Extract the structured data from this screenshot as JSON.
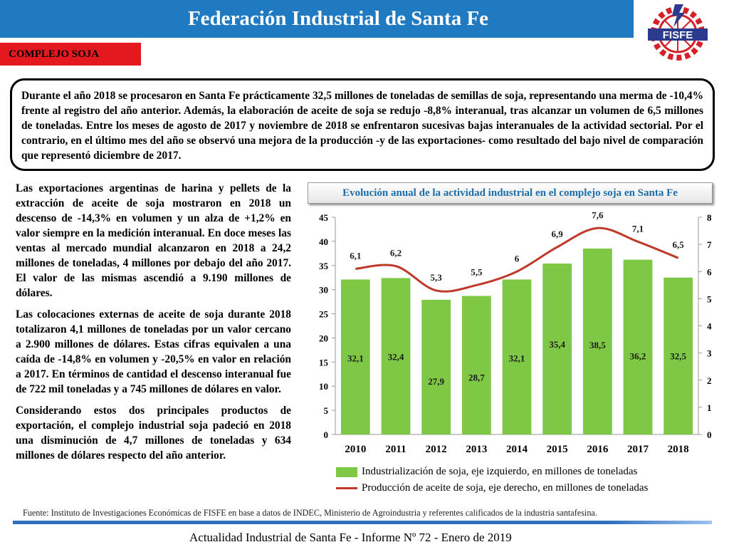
{
  "header": {
    "title": "Federación Industrial de Santa Fe"
  },
  "logo": {
    "text": "FISFE",
    "icon": "fisfe-gear-logo-icon"
  },
  "section": {
    "label": "COMPLEJO SOJA"
  },
  "summary": "Durante el año 2018 se procesaron en Santa Fe prácticamente 32,5 millones de toneladas de semillas de soja, representando una merma de -10,4% frente al registro del año anterior. Además, la elaboración de aceite de soja se redujo -8,8% interanual, tras alcanzar un volumen de 6,5 millones de toneladas. Entre los meses de agosto de 2017 y noviembre de 2018 se enfrentaron sucesivas bajas interanuales de la actividad sectorial. Por el contrario, en el último mes del año se observó una mejora de la producción -y de las exportaciones- como resultado del bajo nivel de comparación que representó diciembre de 2017.",
  "paragraphs": [
    "Las exportaciones argentinas de harina y pellets de la extracción de aceite de soja mostraron en 2018 un descenso de -14,3% en volumen y un alza de +1,2% en valor siempre en la medición interanual. En doce meses las ventas al mercado mundial alcanzaron en 2018 a 24,2 millones de toneladas, 4 millones por debajo del año 2017. El valor de las mismas ascendió a 9.190 millones de dólares.",
    "Las colocaciones externas de aceite de soja durante 2018 totalizaron 4,1 millones de toneladas por un valor cercano a 2.900 millones de dólares. Estas cifras equivalen a una caída de -14,8% en volumen y -20,5% en valor en relación a 2017. En términos de cantidad el descenso interanual fue de 722 mil toneladas y a 745 millones de dólares en valor.",
    "Considerando estos dos principales productos de exportación, el complejo industrial soja padeció en 2018 una disminución de 4,7 millones de toneladas y 634 millones de dólares respecto del año anterior."
  ],
  "chart_data": {
    "type": "bar",
    "title": "Evolución anual de la actividad industrial en el complejo soja en Santa Fe",
    "categories": [
      "2010",
      "2011",
      "2012",
      "2013",
      "2014",
      "2015",
      "2016",
      "2017",
      "2018"
    ],
    "series": [
      {
        "name": "Industrialización de soja, eje izquierdo, en millones de toneladas",
        "type": "bar",
        "axis": "left",
        "color": "#7ec845",
        "values": [
          32.1,
          32.4,
          27.9,
          28.7,
          32.1,
          35.4,
          38.5,
          36.2,
          32.5
        ],
        "labels": [
          "32,1",
          "32,4",
          "27,9",
          "28,7",
          "32,1",
          "35,4",
          "38,5",
          "36,2",
          "32,5"
        ]
      },
      {
        "name": "Producción de aceite de soja, eje derecho, en millones de toneladas",
        "type": "line",
        "axis": "right",
        "color": "#c0392b",
        "values": [
          6.1,
          6.2,
          5.3,
          5.5,
          6.0,
          6.9,
          7.6,
          7.1,
          6.5
        ],
        "labels": [
          "6,1",
          "6,2",
          "5,3",
          "5,5",
          "6",
          "6,9",
          "7,6",
          "7,1",
          "6,5"
        ]
      }
    ],
    "ylim_left": [
      0,
      45
    ],
    "yticks_left": [
      0,
      5,
      10,
      15,
      20,
      25,
      30,
      35,
      40,
      45
    ],
    "ylim_right": [
      0,
      8
    ],
    "yticks_right": [
      0,
      1,
      2,
      3,
      4,
      5,
      6,
      7,
      8
    ],
    "legend": "bottom",
    "grid": false
  },
  "source": "Fuente: Instituto de Investigaciones Económicas de FISFE en base a datos de INDEC, Ministerio de Agroindustria y referentes calificados de la industria santafesina.",
  "footer": "Actualidad Industrial de Santa Fe - Informe Nº 72 - Enero de 2019"
}
